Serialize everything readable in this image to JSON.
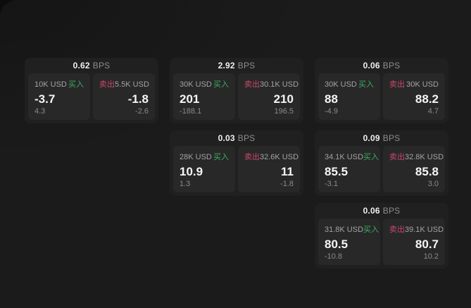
{
  "page": {
    "colors": {
      "page_bg": "#1b1b1b",
      "card_bg": "#202020",
      "panel_bg": "#282828",
      "buy_green": "#3cab66",
      "sell_red": "#c9486b"
    }
  },
  "cards": [
    {
      "bps_value": "0.62",
      "bps_unit": "BPS",
      "buy": {
        "notional": "10K USD",
        "side_label": "买入",
        "price": "-3.7",
        "delta": "4.3"
      },
      "sell": {
        "side_label": "卖出",
        "notional": "5.5K USD",
        "price": "-1.8",
        "delta": "-2.6"
      }
    },
    {
      "bps_value": "2.92",
      "bps_unit": "BPS",
      "buy": {
        "notional": "30K USD",
        "side_label": "买入",
        "price": "201",
        "delta": "-188.1"
      },
      "sell": {
        "side_label": "卖出",
        "notional": "30.1K USD",
        "price": "210",
        "delta": "196.5"
      }
    },
    {
      "bps_value": "0.06",
      "bps_unit": "BPS",
      "buy": {
        "notional": "30K USD",
        "side_label": "买入",
        "price": "88",
        "delta": "-4.9"
      },
      "sell": {
        "side_label": "卖出",
        "notional": "30K USD",
        "price": "88.2",
        "delta": "4.7"
      }
    },
    {
      "bps_value": "0.03",
      "bps_unit": "BPS",
      "buy": {
        "notional": "28K USD",
        "side_label": "买入",
        "price": "10.9",
        "delta": "1.3"
      },
      "sell": {
        "side_label": "卖出",
        "notional": "32.6K USD",
        "price": "11",
        "delta": "-1.8"
      }
    },
    {
      "bps_value": "0.09",
      "bps_unit": "BPS",
      "buy": {
        "notional": "34.1K USD",
        "side_label": "买入",
        "price": "85.5",
        "delta": "-3.1"
      },
      "sell": {
        "side_label": "卖出",
        "notional": "32.8K USD",
        "price": "85.8",
        "delta": "3.0"
      }
    },
    {
      "bps_value": "0.06",
      "bps_unit": "BPS",
      "buy": {
        "notional": "31.8K USD",
        "side_label": "买入",
        "price": "80.5",
        "delta": "-10.8"
      },
      "sell": {
        "side_label": "卖出",
        "notional": "39.1K USD",
        "price": "80.7",
        "delta": "10.2"
      }
    }
  ]
}
